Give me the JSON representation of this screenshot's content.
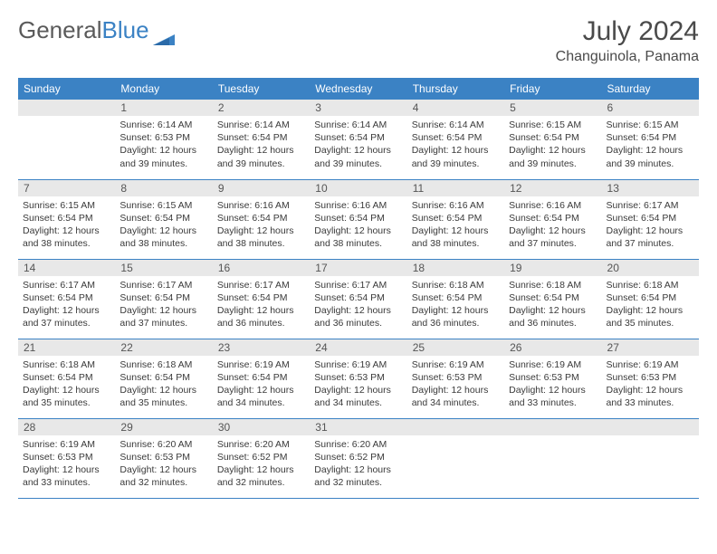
{
  "logo": {
    "text1": "General",
    "text2": "Blue"
  },
  "title": "July 2024",
  "location": "Changuinola, Panama",
  "colors": {
    "header_bg": "#3b82c4",
    "header_text": "#ffffff",
    "daynum_bg": "#e8e8e8",
    "text": "#3a3a3a",
    "row_border": "#3b82c4"
  },
  "day_headers": [
    "Sunday",
    "Monday",
    "Tuesday",
    "Wednesday",
    "Thursday",
    "Friday",
    "Saturday"
  ],
  "weeks": [
    [
      {
        "n": "",
        "sr": "",
        "ss": "",
        "dl": ""
      },
      {
        "n": "1",
        "sr": "Sunrise: 6:14 AM",
        "ss": "Sunset: 6:53 PM",
        "dl": "Daylight: 12 hours and 39 minutes."
      },
      {
        "n": "2",
        "sr": "Sunrise: 6:14 AM",
        "ss": "Sunset: 6:54 PM",
        "dl": "Daylight: 12 hours and 39 minutes."
      },
      {
        "n": "3",
        "sr": "Sunrise: 6:14 AM",
        "ss": "Sunset: 6:54 PM",
        "dl": "Daylight: 12 hours and 39 minutes."
      },
      {
        "n": "4",
        "sr": "Sunrise: 6:14 AM",
        "ss": "Sunset: 6:54 PM",
        "dl": "Daylight: 12 hours and 39 minutes."
      },
      {
        "n": "5",
        "sr": "Sunrise: 6:15 AM",
        "ss": "Sunset: 6:54 PM",
        "dl": "Daylight: 12 hours and 39 minutes."
      },
      {
        "n": "6",
        "sr": "Sunrise: 6:15 AM",
        "ss": "Sunset: 6:54 PM",
        "dl": "Daylight: 12 hours and 39 minutes."
      }
    ],
    [
      {
        "n": "7",
        "sr": "Sunrise: 6:15 AM",
        "ss": "Sunset: 6:54 PM",
        "dl": "Daylight: 12 hours and 38 minutes."
      },
      {
        "n": "8",
        "sr": "Sunrise: 6:15 AM",
        "ss": "Sunset: 6:54 PM",
        "dl": "Daylight: 12 hours and 38 minutes."
      },
      {
        "n": "9",
        "sr": "Sunrise: 6:16 AM",
        "ss": "Sunset: 6:54 PM",
        "dl": "Daylight: 12 hours and 38 minutes."
      },
      {
        "n": "10",
        "sr": "Sunrise: 6:16 AM",
        "ss": "Sunset: 6:54 PM",
        "dl": "Daylight: 12 hours and 38 minutes."
      },
      {
        "n": "11",
        "sr": "Sunrise: 6:16 AM",
        "ss": "Sunset: 6:54 PM",
        "dl": "Daylight: 12 hours and 38 minutes."
      },
      {
        "n": "12",
        "sr": "Sunrise: 6:16 AM",
        "ss": "Sunset: 6:54 PM",
        "dl": "Daylight: 12 hours and 37 minutes."
      },
      {
        "n": "13",
        "sr": "Sunrise: 6:17 AM",
        "ss": "Sunset: 6:54 PM",
        "dl": "Daylight: 12 hours and 37 minutes."
      }
    ],
    [
      {
        "n": "14",
        "sr": "Sunrise: 6:17 AM",
        "ss": "Sunset: 6:54 PM",
        "dl": "Daylight: 12 hours and 37 minutes."
      },
      {
        "n": "15",
        "sr": "Sunrise: 6:17 AM",
        "ss": "Sunset: 6:54 PM",
        "dl": "Daylight: 12 hours and 37 minutes."
      },
      {
        "n": "16",
        "sr": "Sunrise: 6:17 AM",
        "ss": "Sunset: 6:54 PM",
        "dl": "Daylight: 12 hours and 36 minutes."
      },
      {
        "n": "17",
        "sr": "Sunrise: 6:17 AM",
        "ss": "Sunset: 6:54 PM",
        "dl": "Daylight: 12 hours and 36 minutes."
      },
      {
        "n": "18",
        "sr": "Sunrise: 6:18 AM",
        "ss": "Sunset: 6:54 PM",
        "dl": "Daylight: 12 hours and 36 minutes."
      },
      {
        "n": "19",
        "sr": "Sunrise: 6:18 AM",
        "ss": "Sunset: 6:54 PM",
        "dl": "Daylight: 12 hours and 36 minutes."
      },
      {
        "n": "20",
        "sr": "Sunrise: 6:18 AM",
        "ss": "Sunset: 6:54 PM",
        "dl": "Daylight: 12 hours and 35 minutes."
      }
    ],
    [
      {
        "n": "21",
        "sr": "Sunrise: 6:18 AM",
        "ss": "Sunset: 6:54 PM",
        "dl": "Daylight: 12 hours and 35 minutes."
      },
      {
        "n": "22",
        "sr": "Sunrise: 6:18 AM",
        "ss": "Sunset: 6:54 PM",
        "dl": "Daylight: 12 hours and 35 minutes."
      },
      {
        "n": "23",
        "sr": "Sunrise: 6:19 AM",
        "ss": "Sunset: 6:54 PM",
        "dl": "Daylight: 12 hours and 34 minutes."
      },
      {
        "n": "24",
        "sr": "Sunrise: 6:19 AM",
        "ss": "Sunset: 6:53 PM",
        "dl": "Daylight: 12 hours and 34 minutes."
      },
      {
        "n": "25",
        "sr": "Sunrise: 6:19 AM",
        "ss": "Sunset: 6:53 PM",
        "dl": "Daylight: 12 hours and 34 minutes."
      },
      {
        "n": "26",
        "sr": "Sunrise: 6:19 AM",
        "ss": "Sunset: 6:53 PM",
        "dl": "Daylight: 12 hours and 33 minutes."
      },
      {
        "n": "27",
        "sr": "Sunrise: 6:19 AM",
        "ss": "Sunset: 6:53 PM",
        "dl": "Daylight: 12 hours and 33 minutes."
      }
    ],
    [
      {
        "n": "28",
        "sr": "Sunrise: 6:19 AM",
        "ss": "Sunset: 6:53 PM",
        "dl": "Daylight: 12 hours and 33 minutes."
      },
      {
        "n": "29",
        "sr": "Sunrise: 6:20 AM",
        "ss": "Sunset: 6:53 PM",
        "dl": "Daylight: 12 hours and 32 minutes."
      },
      {
        "n": "30",
        "sr": "Sunrise: 6:20 AM",
        "ss": "Sunset: 6:52 PM",
        "dl": "Daylight: 12 hours and 32 minutes."
      },
      {
        "n": "31",
        "sr": "Sunrise: 6:20 AM",
        "ss": "Sunset: 6:52 PM",
        "dl": "Daylight: 12 hours and 32 minutes."
      },
      {
        "n": "",
        "sr": "",
        "ss": "",
        "dl": ""
      },
      {
        "n": "",
        "sr": "",
        "ss": "",
        "dl": ""
      },
      {
        "n": "",
        "sr": "",
        "ss": "",
        "dl": ""
      }
    ]
  ]
}
